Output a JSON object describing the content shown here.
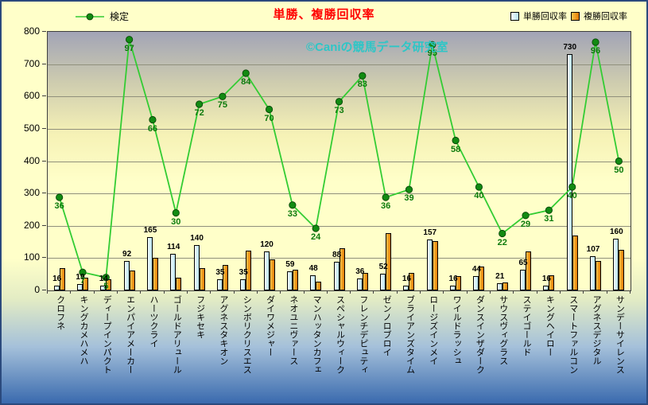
{
  "title": "単勝、複勝回収率",
  "watermark": "©Caniの競馬データ研究室",
  "legend": {
    "line": "検定",
    "win": "単勝回収率",
    "place": "複勝回収率"
  },
  "colors": {
    "title": "#ff0000",
    "watermark": "#2ec6c6",
    "line": "#33cc33",
    "marker": "#128a12",
    "line_label": "#0b7a0b",
    "win_bar_light": "#f6feff",
    "win_bar_dark": "#b7e2ee",
    "place_bar_light": "#ffc54a",
    "place_bar_dark": "#e07800",
    "plot_top": "#a2a4b6",
    "plot_bottom": "#ffffc9",
    "canvas_yellow": "#ffffc9",
    "canvas_blue": "#3a6aae"
  },
  "chart_data": {
    "type": "bar",
    "title": "単勝、複勝回収率",
    "legend_position": "top",
    "grid": true,
    "categories": [
      "クロフネ",
      "キングカメハメハ",
      "ディープインパクト",
      "エンパイアメーカー",
      "ハーツクライ",
      "ゴールドアリュール",
      "フジキセキ",
      "アグネスタキオン",
      "シンボリクリスエス",
      "ダイワメジャー",
      "ネオユニヴァース",
      "マンハッタンカフェ",
      "スペシャルウィーク",
      "フレンチデピュティ",
      "ゼンノロブロイ",
      "ブライアンズタイム",
      "ロージズインメイ",
      "ワイルドラッシュ",
      "ダンスインザダーク",
      "サウスヴィグラス",
      "ステイゴールド",
      "キングヘイロー",
      "スマートファルコン",
      "アグネスデジタル",
      "サンデーサイレンス"
    ],
    "series": [
      {
        "name": "検定",
        "type": "line",
        "axis": "secondary",
        "values": [
          36,
          7,
          5,
          97,
          66,
          30,
          72,
          75,
          84,
          70,
          33,
          24,
          73,
          83,
          36,
          39,
          95,
          58,
          40,
          22,
          29,
          31,
          40,
          96,
          50
        ]
      },
      {
        "name": "単勝回収率",
        "type": "bar",
        "values": [
          16,
          19,
          14,
          92,
          165,
          114,
          140,
          35,
          35,
          120,
          59,
          48,
          88,
          36,
          52,
          16,
          157,
          16,
          44,
          21,
          65,
          16,
          730,
          107,
          160
        ]
      },
      {
        "name": "複勝回収率",
        "type": "bar",
        "values": [
          70,
          40,
          35,
          62,
          100,
          40,
          70,
          78,
          122,
          97,
          65,
          28,
          130,
          55,
          178,
          55,
          153,
          45,
          75,
          25,
          120,
          48,
          170,
          90,
          125
        ]
      }
    ],
    "y_axis": {
      "min": 0,
      "max": 800,
      "step": 100,
      "ticks": [
        800,
        700,
        600,
        500,
        400,
        300,
        200,
        100,
        0
      ]
    },
    "secondary_y_axis": {
      "min": 0,
      "max": 100,
      "visible": false
    }
  }
}
